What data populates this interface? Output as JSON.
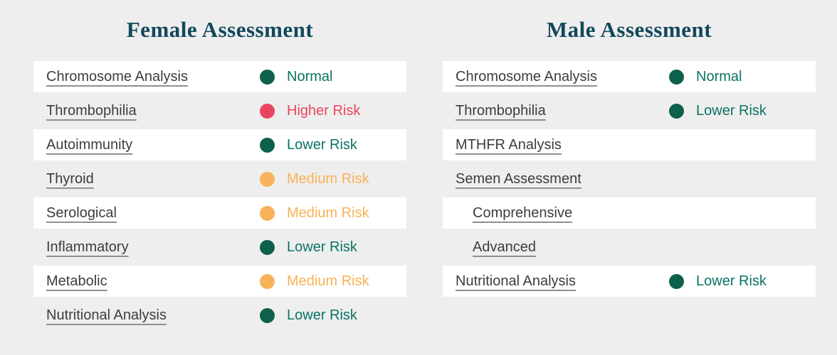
{
  "page": {
    "background": "#EEEEEE",
    "row_highlight": "#FFFFFF",
    "title_color": "#13485C",
    "link_color": "#3D3D3D",
    "link_underline_color": "#8F8F8F"
  },
  "status_styles": {
    "normal": {
      "dot": "#0D604C",
      "text": "#0A7463"
    },
    "lower": {
      "dot": "#0D604C",
      "text": "#0A7463"
    },
    "medium": {
      "dot": "#F8B25A",
      "text": "#F9B255"
    },
    "higher": {
      "dot": "#E9455E",
      "text": "#E9455E"
    }
  },
  "columns": [
    {
      "id": "female",
      "title": "Female Assessment",
      "rows": [
        {
          "label": "Chromosome Analysis",
          "status": "Normal",
          "level": "normal",
          "indent": false
        },
        {
          "label": "Thrombophilia",
          "status": "Higher Risk",
          "level": "higher",
          "indent": false
        },
        {
          "label": "Autoimmunity",
          "status": "Lower Risk",
          "level": "lower",
          "indent": false
        },
        {
          "label": "Thyroid",
          "status": "Medium Risk",
          "level": "medium",
          "indent": false
        },
        {
          "label": "Serological",
          "status": "Medium Risk",
          "level": "medium",
          "indent": false
        },
        {
          "label": "Inflammatory",
          "status": "Lower Risk",
          "level": "lower",
          "indent": false
        },
        {
          "label": "Metabolic",
          "status": "Medium Risk",
          "level": "medium",
          "indent": false
        },
        {
          "label": "Nutritional Analysis",
          "status": "Lower Risk",
          "level": "lower",
          "indent": false
        }
      ]
    },
    {
      "id": "male",
      "title": "Male Assessment",
      "rows": [
        {
          "label": "Chromosome Analysis",
          "status": "Normal",
          "level": "normal",
          "indent": false
        },
        {
          "label": "Thrombophilia",
          "status": "Lower Risk",
          "level": "lower",
          "indent": false
        },
        {
          "label": "MTHFR Analysis",
          "status": null,
          "level": null,
          "indent": false
        },
        {
          "label": "Semen Assessment",
          "status": null,
          "level": null,
          "indent": false
        },
        {
          "label": "Comprehensive",
          "status": null,
          "level": null,
          "indent": true
        },
        {
          "label": "Advanced",
          "status": null,
          "level": null,
          "indent": true
        },
        {
          "label": "Nutritional Analysis",
          "status": "Lower Risk",
          "level": "lower",
          "indent": false
        }
      ]
    }
  ]
}
